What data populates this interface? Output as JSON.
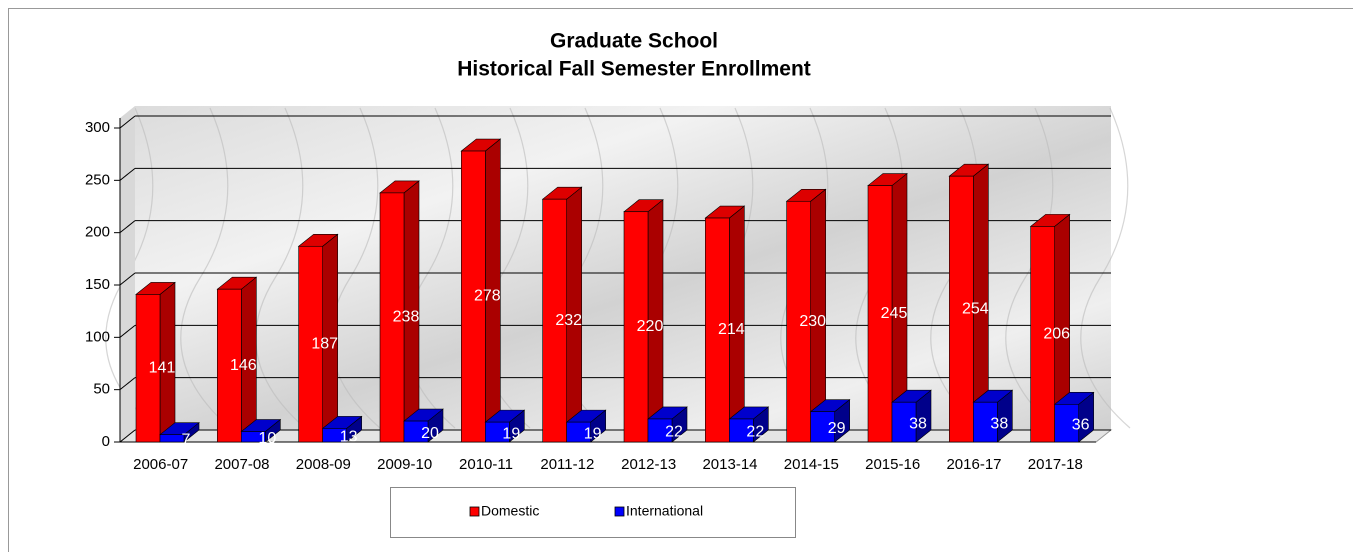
{
  "chart_data": {
    "type": "bar3d",
    "title": "Graduate School",
    "subtitle": "Historical Fall Semester Enrollment",
    "categories": [
      "2006-07",
      "2007-08",
      "2008-09",
      "2009-10",
      "2010-11",
      "2011-12",
      "2012-13",
      "2013-14",
      "2014-15",
      "2015-16",
      "2016-17",
      "2017-18"
    ],
    "series": [
      {
        "name": "Domestic",
        "color": "#ff0000",
        "values": [
          141,
          146,
          187,
          238,
          278,
          232,
          220,
          214,
          230,
          245,
          254,
          206
        ]
      },
      {
        "name": "International",
        "color": "#0000ff",
        "values": [
          7,
          10,
          13,
          20,
          19,
          19,
          22,
          22,
          29,
          38,
          38,
          36
        ]
      }
    ],
    "ylim": [
      0,
      300
    ],
    "yticks": [
      0,
      50,
      100,
      150,
      200,
      250,
      300
    ],
    "grid": true,
    "legend": "bottom"
  }
}
